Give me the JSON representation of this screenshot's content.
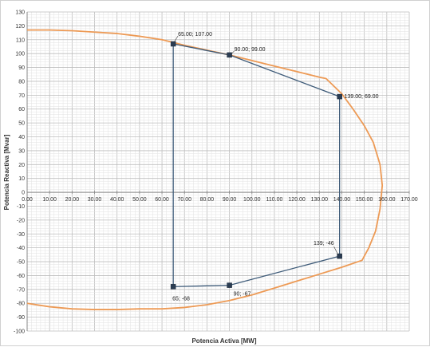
{
  "chart_data": {
    "type": "line",
    "xlabel": "Potencia Activa [MW]",
    "ylabel": "Potencia Reactiva [Mvar]",
    "xlim": [
      0,
      170
    ],
    "ylim": [
      -100,
      130
    ],
    "x_major_step": 10,
    "y_major_step": 10,
    "x_tick_labels": [
      "0.00",
      "10.00",
      "20.00",
      "30.00",
      "40.00",
      "50.00",
      "60.00",
      "70.00",
      "80.00",
      "90.00",
      "100.00",
      "110.00",
      "120.00",
      "130.00",
      "140.00",
      "150.00",
      "160.00",
      "170.00"
    ],
    "y_tick_labels": [
      "130",
      "120",
      "110",
      "100",
      "90",
      "80",
      "70",
      "60",
      "50",
      "40",
      "30",
      "20",
      "10",
      "0",
      "-10",
      "-20",
      "-30",
      "-40",
      "-50",
      "-60",
      "-70",
      "-80",
      "-90",
      "-100"
    ],
    "grid": true,
    "grid_minor": true,
    "legend": "none",
    "colors": {
      "capability_curve": "#ed9a55",
      "operating_region": "#3d5a78",
      "grid_major": "#bdbdbd",
      "grid_minor": "#e2e2e2"
    },
    "series": [
      {
        "style": "curve",
        "points": [
          [
            0,
            117
          ],
          [
            10,
            117
          ],
          [
            20,
            116.5
          ],
          [
            30,
            115.5
          ],
          [
            40,
            114.5
          ],
          [
            50,
            112.5
          ],
          [
            60,
            110
          ],
          [
            70,
            106
          ],
          [
            80,
            102.5
          ],
          [
            90,
            99
          ],
          [
            100,
            95
          ],
          [
            110,
            91
          ],
          [
            120,
            87
          ],
          [
            130,
            83
          ],
          [
            133,
            82
          ],
          [
            140,
            71
          ],
          [
            145,
            60
          ],
          [
            150,
            48
          ],
          [
            154,
            36
          ],
          [
            157,
            20
          ],
          [
            158,
            5
          ],
          [
            157,
            -12
          ],
          [
            155,
            -28
          ],
          [
            152,
            -40
          ],
          [
            149,
            -49
          ],
          [
            140,
            -54
          ],
          [
            130,
            -59
          ],
          [
            120,
            -64
          ],
          [
            110,
            -69
          ],
          [
            100,
            -74
          ],
          [
            90,
            -78
          ],
          [
            80,
            -81
          ],
          [
            70,
            -83
          ],
          [
            60,
            -84
          ],
          [
            50,
            -84
          ],
          [
            40,
            -84.5
          ],
          [
            30,
            -84.5
          ],
          [
            20,
            -84
          ],
          [
            10,
            -82.5
          ],
          [
            0,
            -80
          ]
        ]
      },
      {
        "style": "polygon",
        "points": [
          [
            65,
            107
          ],
          [
            90,
            99
          ],
          [
            139,
            69
          ],
          [
            139,
            -46
          ],
          [
            90,
            -67
          ],
          [
            65,
            -68
          ],
          [
            65,
            107
          ]
        ],
        "markers": true
      }
    ],
    "annotations": [
      {
        "x": 65,
        "y": 107,
        "text": "65.00; 107.00"
      },
      {
        "x": 90,
        "y": 99,
        "text": "90.00; 99.00"
      },
      {
        "x": 139,
        "y": 69,
        "text": "139.00; 69.00"
      },
      {
        "x": 139,
        "y": -46,
        "text": "139; -46"
      },
      {
        "x": 90,
        "y": -67,
        "text": "90; -67"
      },
      {
        "x": 65,
        "y": -68,
        "text": "65; -68"
      }
    ]
  }
}
